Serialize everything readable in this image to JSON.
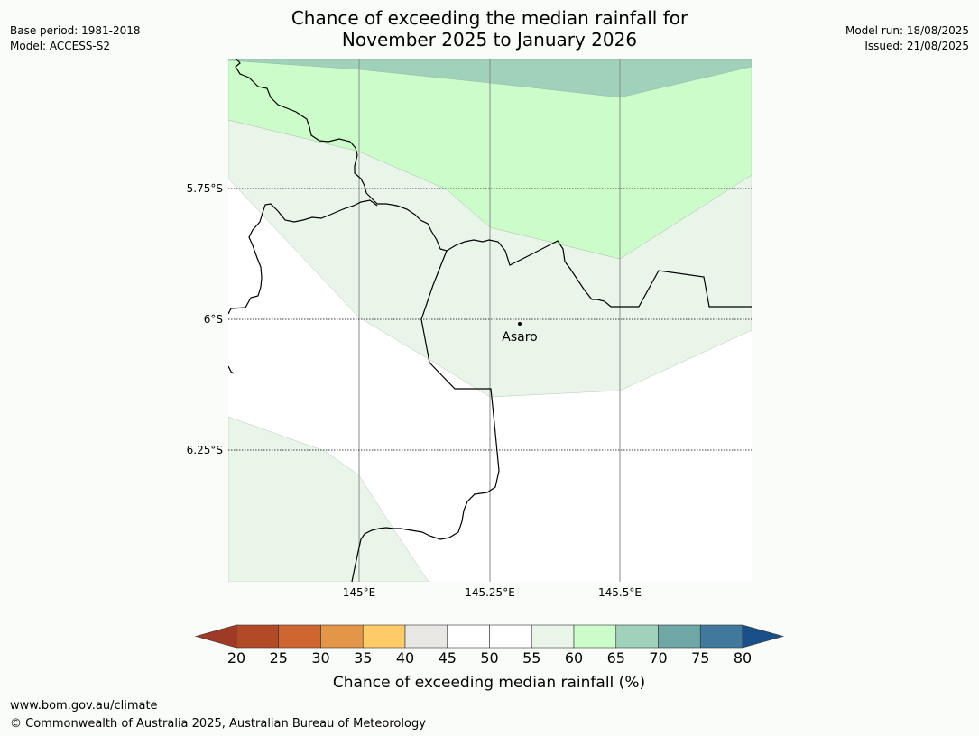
{
  "title": {
    "line1": "Chance of exceeding the median rainfall for",
    "line2": "November 2025 to January 2026"
  },
  "meta_left": {
    "base_period": "Base period: 1981-2018",
    "model": "Model: ACCESS-S2"
  },
  "meta_right": {
    "model_run": "Model run: 18/08/2025",
    "issued": "Issued: 21/08/2025"
  },
  "map": {
    "lat_labels": [
      "5.75°S",
      "6°S",
      "6.25°S"
    ],
    "lon_labels": [
      "145°E",
      "145.25°E",
      "145.5°E"
    ],
    "place": {
      "name": "Asaro",
      "lat": -6.01,
      "lon": 145.3
    }
  },
  "colorbar": {
    "ticks": [
      "20",
      "25",
      "30",
      "35",
      "40",
      "45",
      "50",
      "55",
      "60",
      "65",
      "70",
      "75",
      "80"
    ],
    "colors": [
      "#9e3a26",
      "#b24a28",
      "#cf6632",
      "#e39548",
      "#fecb67",
      "#e9e7e4",
      "#ffffff",
      "#ffffff",
      "#eaf5ea",
      "#cbfcca",
      "#9fd1bb",
      "#6fa6a6",
      "#40799c",
      "#194f89"
    ],
    "label": "Chance of exceeding median rainfall (%)"
  },
  "footer": {
    "url": "www.bom.gov.au/climate",
    "copyright": "© Commonwealth of Australia 2025, Australian Bureau of Meteorology"
  }
}
